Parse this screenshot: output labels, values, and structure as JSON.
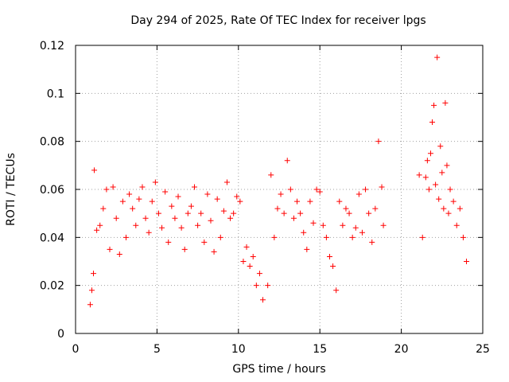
{
  "chart_data": {
    "type": "scatter",
    "title": "Day 294 of 2025, Rate Of TEC Index for receiver lpgs",
    "xlabel": "GPS time / hours",
    "ylabel": "ROTI / TECUs",
    "xlim": [
      0,
      25
    ],
    "ylim": [
      0,
      0.12
    ],
    "x_ticks": [
      "0",
      "5",
      "10",
      "15",
      "20",
      "25"
    ],
    "y_ticks": [
      "0",
      "0.02",
      "0.04",
      "0.06",
      "0.08",
      "0.1",
      "0.12"
    ],
    "grid": true,
    "marker": "plus",
    "color": "#ff0000",
    "series": [
      {
        "x": [
          0.9,
          1.0,
          1.1,
          1.15,
          1.3,
          1.5,
          1.7,
          1.9,
          2.1,
          2.3,
          2.5,
          2.7,
          2.9,
          3.1,
          3.3,
          3.5,
          3.7,
          3.9,
          4.1,
          4.3,
          4.5,
          4.7,
          4.9,
          5.1,
          5.3,
          5.5,
          5.7,
          5.9,
          6.1,
          6.3,
          6.5,
          6.7,
          6.9,
          7.1,
          7.3,
          7.5,
          7.7,
          7.9,
          8.1,
          8.3,
          8.5,
          8.7,
          8.9,
          9.1,
          9.3,
          9.5,
          9.7,
          9.9,
          10.1,
          10.3,
          10.5,
          10.7,
          10.9,
          11.1,
          11.3,
          11.5,
          11.8,
          12.0,
          12.2,
          12.4,
          12.6,
          12.8,
          13.0,
          13.2,
          13.4,
          13.6,
          13.8,
          14.0,
          14.2,
          14.4,
          14.6,
          14.8,
          15.0,
          15.2,
          15.4,
          15.6,
          15.8,
          16.0,
          16.2,
          16.4,
          16.6,
          16.8,
          17.0,
          17.2,
          17.4,
          17.6,
          17.8,
          18.0,
          18.2,
          18.4,
          18.6,
          18.8,
          18.9,
          21.1,
          21.3,
          21.5,
          21.6,
          21.7,
          21.8,
          21.9,
          22.0,
          22.1,
          22.2,
          22.3,
          22.4,
          22.5,
          22.6,
          22.7,
          22.8,
          22.9,
          23.0,
          23.2,
          23.4,
          23.6,
          23.8,
          24.0
        ],
        "y": [
          0.012,
          0.018,
          0.025,
          0.068,
          0.043,
          0.045,
          0.052,
          0.06,
          0.035,
          0.061,
          0.048,
          0.033,
          0.055,
          0.04,
          0.058,
          0.052,
          0.045,
          0.056,
          0.061,
          0.048,
          0.042,
          0.055,
          0.063,
          0.05,
          0.044,
          0.059,
          0.038,
          0.053,
          0.048,
          0.057,
          0.044,
          0.035,
          0.05,
          0.053,
          0.061,
          0.045,
          0.05,
          0.038,
          0.058,
          0.047,
          0.034,
          0.056,
          0.04,
          0.051,
          0.063,
          0.048,
          0.05,
          0.057,
          0.055,
          0.03,
          0.036,
          0.028,
          0.032,
          0.02,
          0.025,
          0.014,
          0.02,
          0.066,
          0.04,
          0.052,
          0.058,
          0.05,
          0.072,
          0.06,
          0.048,
          0.055,
          0.05,
          0.042,
          0.035,
          0.055,
          0.046,
          0.06,
          0.059,
          0.045,
          0.04,
          0.032,
          0.028,
          0.018,
          0.055,
          0.045,
          0.052,
          0.05,
          0.04,
          0.044,
          0.058,
          0.042,
          0.06,
          0.05,
          0.038,
          0.052,
          0.08,
          0.061,
          0.045,
          0.066,
          0.04,
          0.065,
          0.072,
          0.06,
          0.075,
          0.088,
          0.095,
          0.062,
          0.115,
          0.056,
          0.078,
          0.067,
          0.052,
          0.096,
          0.07,
          0.05,
          0.06,
          0.055,
          0.045,
          0.052,
          0.04,
          0.03
        ]
      }
    ]
  }
}
